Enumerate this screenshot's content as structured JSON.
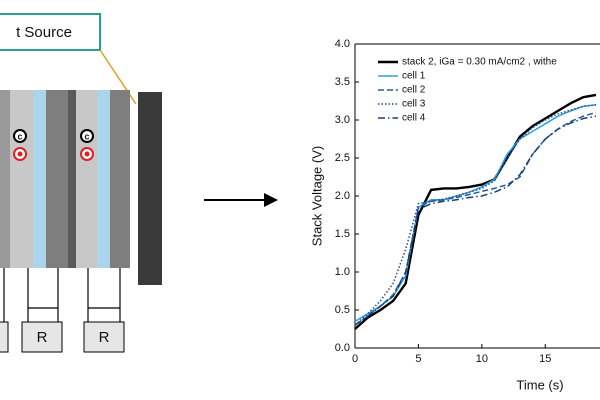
{
  "diagram": {
    "source_label": "t Source",
    "resistors": [
      "R",
      "R"
    ],
    "contacts": [
      "c",
      "c"
    ]
  },
  "chart_data": {
    "type": "line",
    "xlabel": "Time (s)",
    "ylabel": "Stack Voltage (V)",
    "x": [
      0,
      1,
      2,
      3,
      4,
      5,
      6,
      7,
      8,
      9,
      10,
      11,
      12,
      13,
      14,
      15,
      16,
      17,
      18,
      19
    ],
    "series": [
      {
        "name": "stack 2, iGa = 0.30 mA/cm2 , withe",
        "color": "#000000",
        "width": 2.4,
        "dash": "solid",
        "values": [
          0.25,
          0.4,
          0.5,
          0.62,
          0.85,
          1.75,
          2.08,
          2.1,
          2.1,
          2.12,
          2.15,
          2.22,
          2.5,
          2.78,
          2.92,
          3.02,
          3.12,
          3.22,
          3.3,
          3.33
        ]
      },
      {
        "name": "cell 1",
        "color": "#2e9fe0",
        "width": 1.5,
        "dash": "solid",
        "values": [
          0.35,
          0.45,
          0.55,
          0.68,
          0.95,
          1.85,
          1.95,
          1.95,
          2.0,
          2.05,
          2.12,
          2.22,
          2.55,
          2.75,
          2.85,
          2.95,
          3.05,
          3.12,
          3.18,
          3.2
        ]
      },
      {
        "name": "cell 2",
        "color": "#1f5fa8",
        "width": 1.5,
        "dash": "dashed",
        "values": [
          0.3,
          0.42,
          0.55,
          0.7,
          1.0,
          1.85,
          1.93,
          1.95,
          1.98,
          2.02,
          2.06,
          2.1,
          2.15,
          2.25,
          2.55,
          2.75,
          2.88,
          2.98,
          3.05,
          3.1
        ]
      },
      {
        "name": "cell 3",
        "color": "#1f4f8a",
        "width": 1.5,
        "dash": "dotted",
        "values": [
          0.3,
          0.45,
          0.62,
          0.85,
          1.3,
          1.9,
          1.93,
          1.96,
          2.0,
          2.05,
          2.1,
          2.2,
          2.5,
          2.75,
          2.9,
          3.0,
          3.08,
          3.13,
          3.18,
          3.2
        ]
      },
      {
        "name": "cell 4",
        "color": "#1b3f6e",
        "width": 1.5,
        "dash": "dashdot",
        "values": [
          0.3,
          0.42,
          0.55,
          0.68,
          1.0,
          1.82,
          1.9,
          1.93,
          1.95,
          1.98,
          2.0,
          2.05,
          2.12,
          2.28,
          2.55,
          2.75,
          2.88,
          2.96,
          3.02,
          3.05
        ]
      }
    ],
    "xlim": [
      0,
      19
    ],
    "xticks": [
      0,
      5,
      10,
      15
    ],
    "ylim": [
      0,
      4
    ],
    "yticks": [
      {
        "value": 0,
        "label": "0.0"
      },
      0.5,
      {
        "value": 1,
        "label": "1.0"
      },
      1.5,
      {
        "value": 2,
        "label": "2.0"
      },
      2.5,
      {
        "value": 3,
        "label": "3.0"
      },
      3.5,
      {
        "value": 4,
        "label": "4.0"
      }
    ],
    "legend": "upper left"
  }
}
